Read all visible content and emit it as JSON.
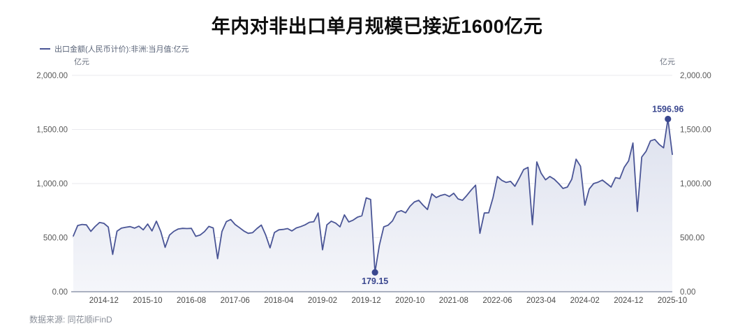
{
  "title": "年内对非出口单月规模已接近1600亿元",
  "legend": {
    "label": "出口金额(人民币计价):非洲:当月值:亿元"
  },
  "y_unit_left": "亿元",
  "y_unit_right": "亿元",
  "source": "数据来源: 同花顺iFinD",
  "colors": {
    "line": "#4a5596",
    "area_top": "#dde1ee",
    "area_bottom": "#f5f6fa",
    "annotation": "#3a478f",
    "grid": "#e9e9ee",
    "axis_line": "#7a849c",
    "y_tick_text": "#595959",
    "x_tick_text": "#4a4a4a"
  },
  "chart_data": {
    "type": "area",
    "title": "年内对非出口单月规模已接近1600亿元",
    "series_name": "出口金额(人民币计价):非洲:当月值:亿元",
    "ylabel": "亿元",
    "ylim": [
      0,
      2000
    ],
    "grid": true,
    "legend_position": "top-left",
    "y_ticks": [
      {
        "value": 0,
        "label": "0.00"
      },
      {
        "value": 500,
        "label": "500.00"
      },
      {
        "value": 1000,
        "label": "1,000.00"
      },
      {
        "value": 1500,
        "label": "1,500.00"
      },
      {
        "value": 2000,
        "label": "2,000.00"
      }
    ],
    "x_tick_labels": [
      "2014-12",
      "2015-10",
      "2016-08",
      "2017-06",
      "2018-04",
      "2019-02",
      "2019-12",
      "2020-10",
      "2021-08",
      "2022-06",
      "2023-04",
      "2024-02",
      "2024-12",
      "2025-10"
    ],
    "x": [
      "2014-05",
      "2014-06",
      "2014-07",
      "2014-08",
      "2014-09",
      "2014-10",
      "2014-11",
      "2014-12",
      "2015-01",
      "2015-02",
      "2015-03",
      "2015-04",
      "2015-05",
      "2015-06",
      "2015-07",
      "2015-08",
      "2015-09",
      "2015-10",
      "2015-11",
      "2015-12",
      "2016-01",
      "2016-02",
      "2016-03",
      "2016-04",
      "2016-05",
      "2016-06",
      "2016-07",
      "2016-08",
      "2016-09",
      "2016-10",
      "2016-11",
      "2016-12",
      "2017-01",
      "2017-02",
      "2017-03",
      "2017-04",
      "2017-05",
      "2017-06",
      "2017-07",
      "2017-08",
      "2017-09",
      "2017-10",
      "2017-11",
      "2017-12",
      "2018-01",
      "2018-02",
      "2018-03",
      "2018-04",
      "2018-05",
      "2018-06",
      "2018-07",
      "2018-08",
      "2018-09",
      "2018-10",
      "2018-11",
      "2018-12",
      "2019-01",
      "2019-02",
      "2019-03",
      "2019-04",
      "2019-05",
      "2019-06",
      "2019-07",
      "2019-08",
      "2019-09",
      "2019-10",
      "2019-11",
      "2019-12",
      "2020-01",
      "2020-02",
      "2020-03",
      "2020-04",
      "2020-05",
      "2020-06",
      "2020-07",
      "2020-08",
      "2020-09",
      "2020-10",
      "2020-11",
      "2020-12",
      "2021-01",
      "2021-02",
      "2021-03",
      "2021-04",
      "2021-05",
      "2021-06",
      "2021-07",
      "2021-08",
      "2021-09",
      "2021-10",
      "2021-11",
      "2021-12",
      "2022-01",
      "2022-02",
      "2022-03",
      "2022-04",
      "2022-05",
      "2022-06",
      "2022-07",
      "2022-08",
      "2022-09",
      "2022-10",
      "2022-11",
      "2022-12",
      "2023-01",
      "2023-02",
      "2023-03",
      "2023-04",
      "2023-05",
      "2023-06",
      "2023-07",
      "2023-08",
      "2023-09",
      "2023-10",
      "2023-11",
      "2023-12",
      "2024-01",
      "2024-02",
      "2024-03",
      "2024-04",
      "2024-05",
      "2024-06",
      "2024-07",
      "2024-08",
      "2024-09",
      "2024-10",
      "2024-11",
      "2024-12",
      "2025-01",
      "2025-02",
      "2025-03",
      "2025-04",
      "2025-05",
      "2025-06",
      "2025-07",
      "2025-08",
      "2025-09",
      "2025-10"
    ],
    "values": [
      515,
      612,
      622,
      618,
      558,
      603,
      640,
      632,
      598,
      345,
      560,
      588,
      596,
      602,
      588,
      606,
      572,
      626,
      562,
      652,
      556,
      410,
      524,
      558,
      580,
      586,
      584,
      586,
      512,
      524,
      556,
      604,
      590,
      306,
      556,
      648,
      668,
      622,
      592,
      562,
      540,
      546,
      584,
      616,
      524,
      406,
      548,
      572,
      576,
      584,
      562,
      590,
      602,
      618,
      642,
      648,
      728,
      388,
      618,
      652,
      634,
      600,
      710,
      645,
      662,
      690,
      702,
      868,
      852,
      179.15,
      430,
      600,
      615,
      655,
      735,
      750,
      730,
      790,
      830,
      845,
      800,
      760,
      905,
      870,
      890,
      900,
      880,
      910,
      858,
      845,
      890,
      940,
      985,
      540,
      728,
      730,
      870,
      1065,
      1030,
      1010,
      1020,
      975,
      1050,
      1130,
      1150,
      620,
      1200,
      1095,
      1035,
      1065,
      1040,
      1000,
      955,
      968,
      1040,
      1225,
      1160,
      800,
      950,
      1000,
      1012,
      1032,
      1000,
      968,
      1055,
      1046,
      1150,
      1210,
      1375,
      742,
      1245,
      1298,
      1395,
      1408,
      1362,
      1330,
      1596.96,
      1270
    ],
    "annotations": [
      {
        "x": "2025-09",
        "value": 1596.96,
        "label": "1596.96",
        "placement": "above"
      },
      {
        "x": "2020-02",
        "value": 179.15,
        "label": "179.15",
        "placement": "below"
      }
    ]
  }
}
